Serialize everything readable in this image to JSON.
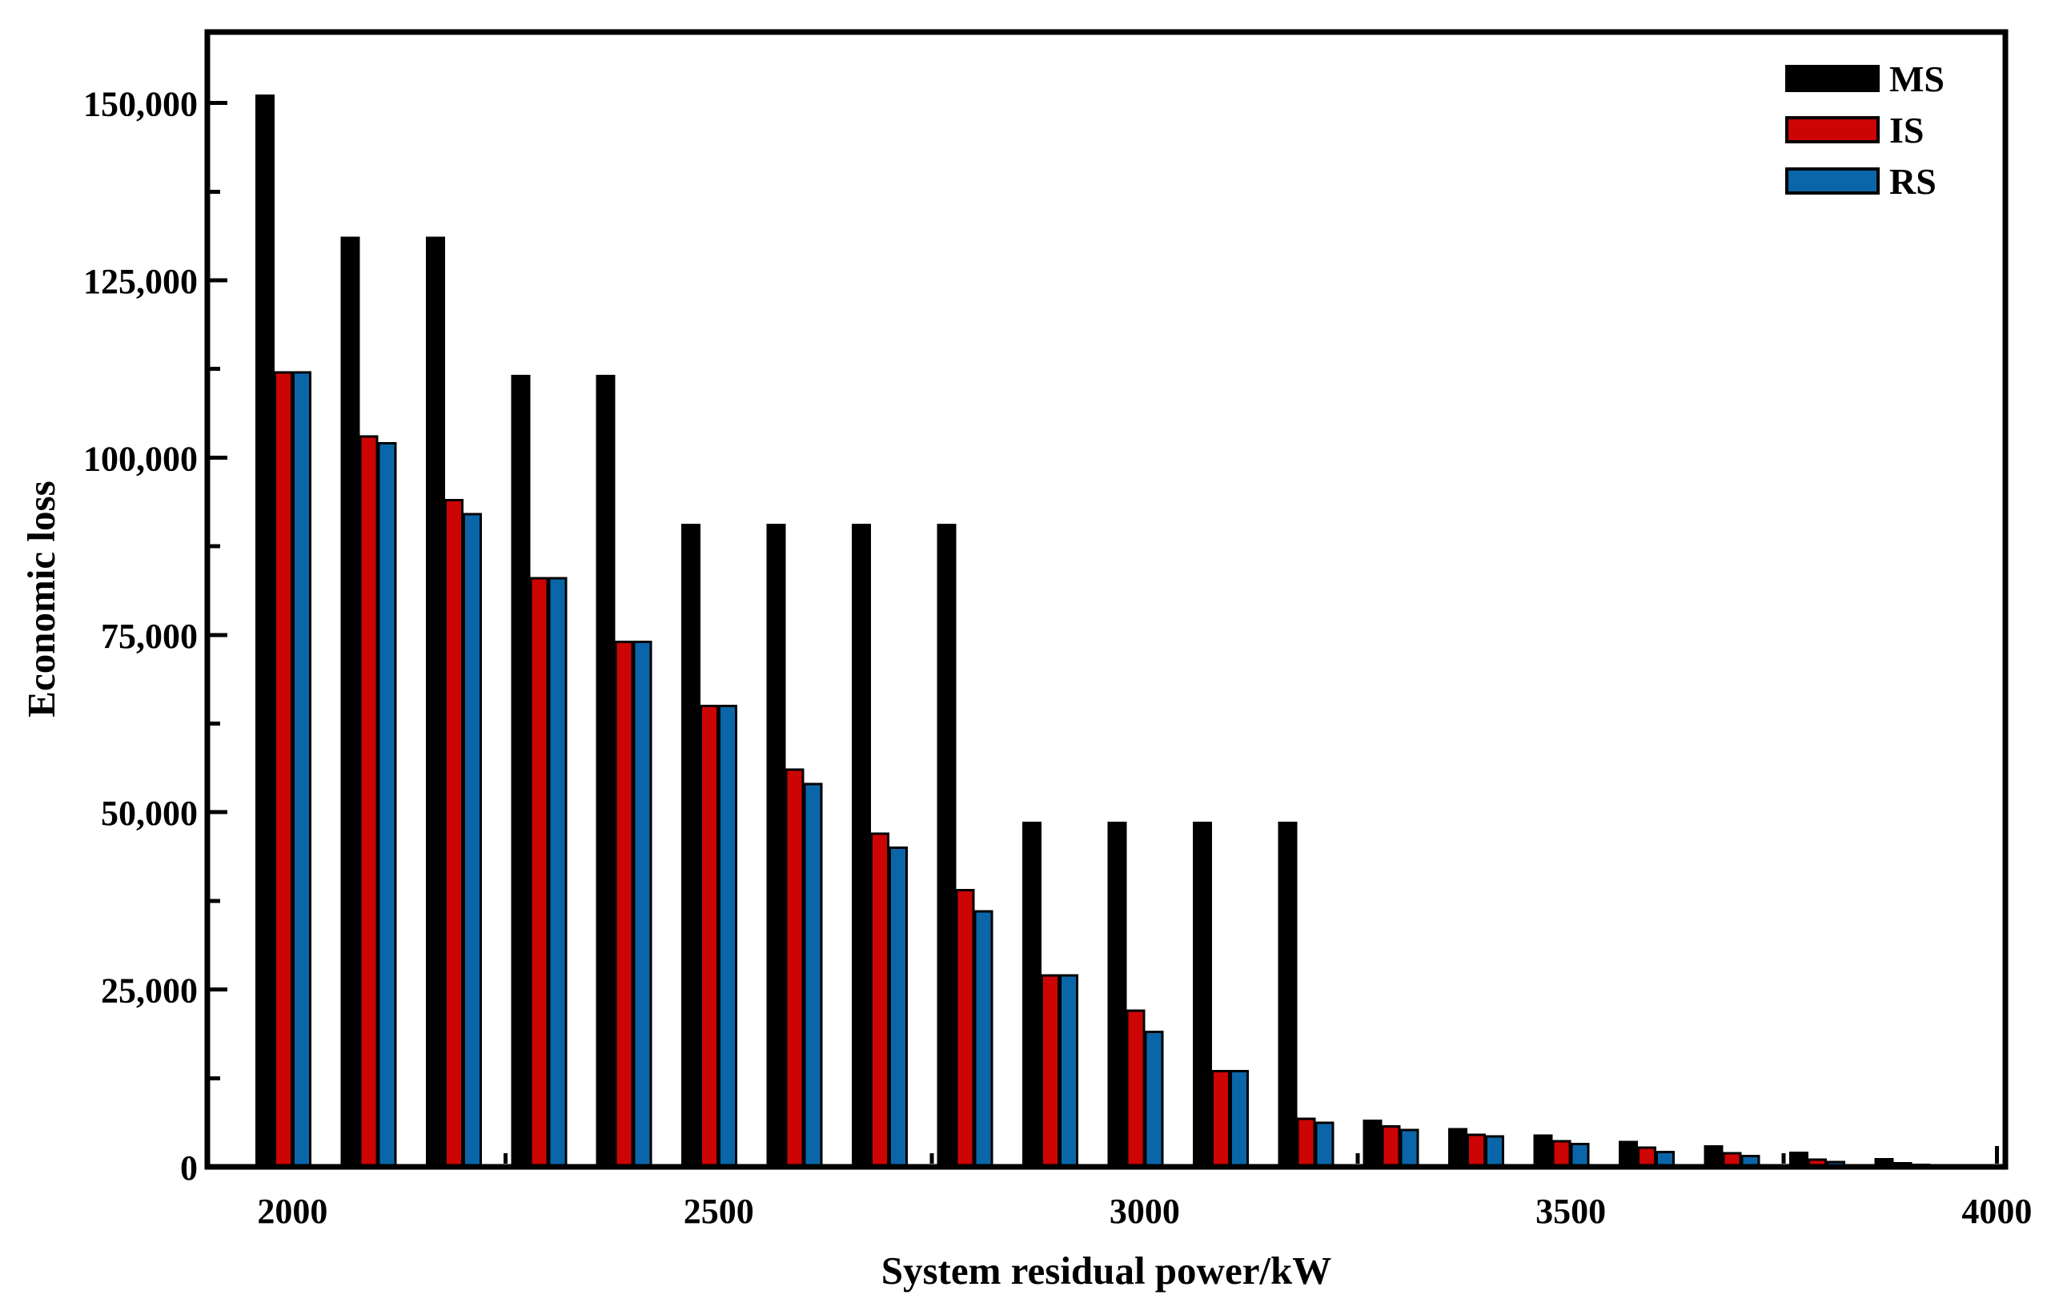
{
  "figure": {
    "background": "#ffffff",
    "border_color": "#000000"
  },
  "chart_data": {
    "type": "bar",
    "title": "",
    "xlabel": "System residual power/kW",
    "ylabel": "Economic loss",
    "categories": [
      2000,
      2100,
      2200,
      2300,
      2400,
      2500,
      2600,
      2700,
      2800,
      2900,
      3000,
      3100,
      3200,
      3300,
      3400,
      3500,
      3600,
      3700,
      3800,
      3900
    ],
    "series": [
      {
        "name": "MS",
        "color": "#000000",
        "values": [
          151000,
          131000,
          131000,
          111500,
          111500,
          90500,
          90500,
          90500,
          90500,
          48500,
          48500,
          48500,
          48500,
          6500,
          5300,
          4400,
          3500,
          2900,
          2000,
          1100
        ]
      },
      {
        "name": "IS",
        "color": "#cc0404",
        "values": [
          112000,
          103000,
          94000,
          83000,
          74000,
          65000,
          56000,
          47000,
          39000,
          27000,
          22000,
          13500,
          6800,
          5700,
          4500,
          3600,
          2700,
          1900,
          1000,
          500
        ]
      },
      {
        "name": "RS",
        "color": "#0a66a8",
        "values": [
          112000,
          102000,
          92000,
          83000,
          74000,
          65000,
          54000,
          45000,
          36000,
          27000,
          19000,
          13500,
          6200,
          5200,
          4300,
          3200,
          2100,
          1500,
          700,
          300
        ]
      }
    ],
    "xlim": [
      1900,
      4010
    ],
    "ylim": [
      0,
      160000
    ],
    "xticks": {
      "major": [
        2000,
        2500,
        3000,
        3500,
        4000
      ],
      "labels": [
        "2000",
        "2500",
        "3000",
        "3500",
        "4000"
      ],
      "minor": [
        2250,
        2750,
        3250,
        3750
      ]
    },
    "yticks": {
      "major": [
        0,
        25000,
        50000,
        75000,
        100000,
        125000,
        150000
      ],
      "labels": [
        "0",
        "25,000",
        "50,000",
        "75,000",
        "100,000",
        "125,000",
        "150,000"
      ],
      "minor": [
        12500,
        37500,
        62500,
        87500,
        112500,
        137500
      ]
    },
    "legend": {
      "position": "top-right",
      "entries": [
        "MS",
        "IS",
        "RS"
      ]
    },
    "bar_outline_color": "#000000",
    "grid": false
  }
}
